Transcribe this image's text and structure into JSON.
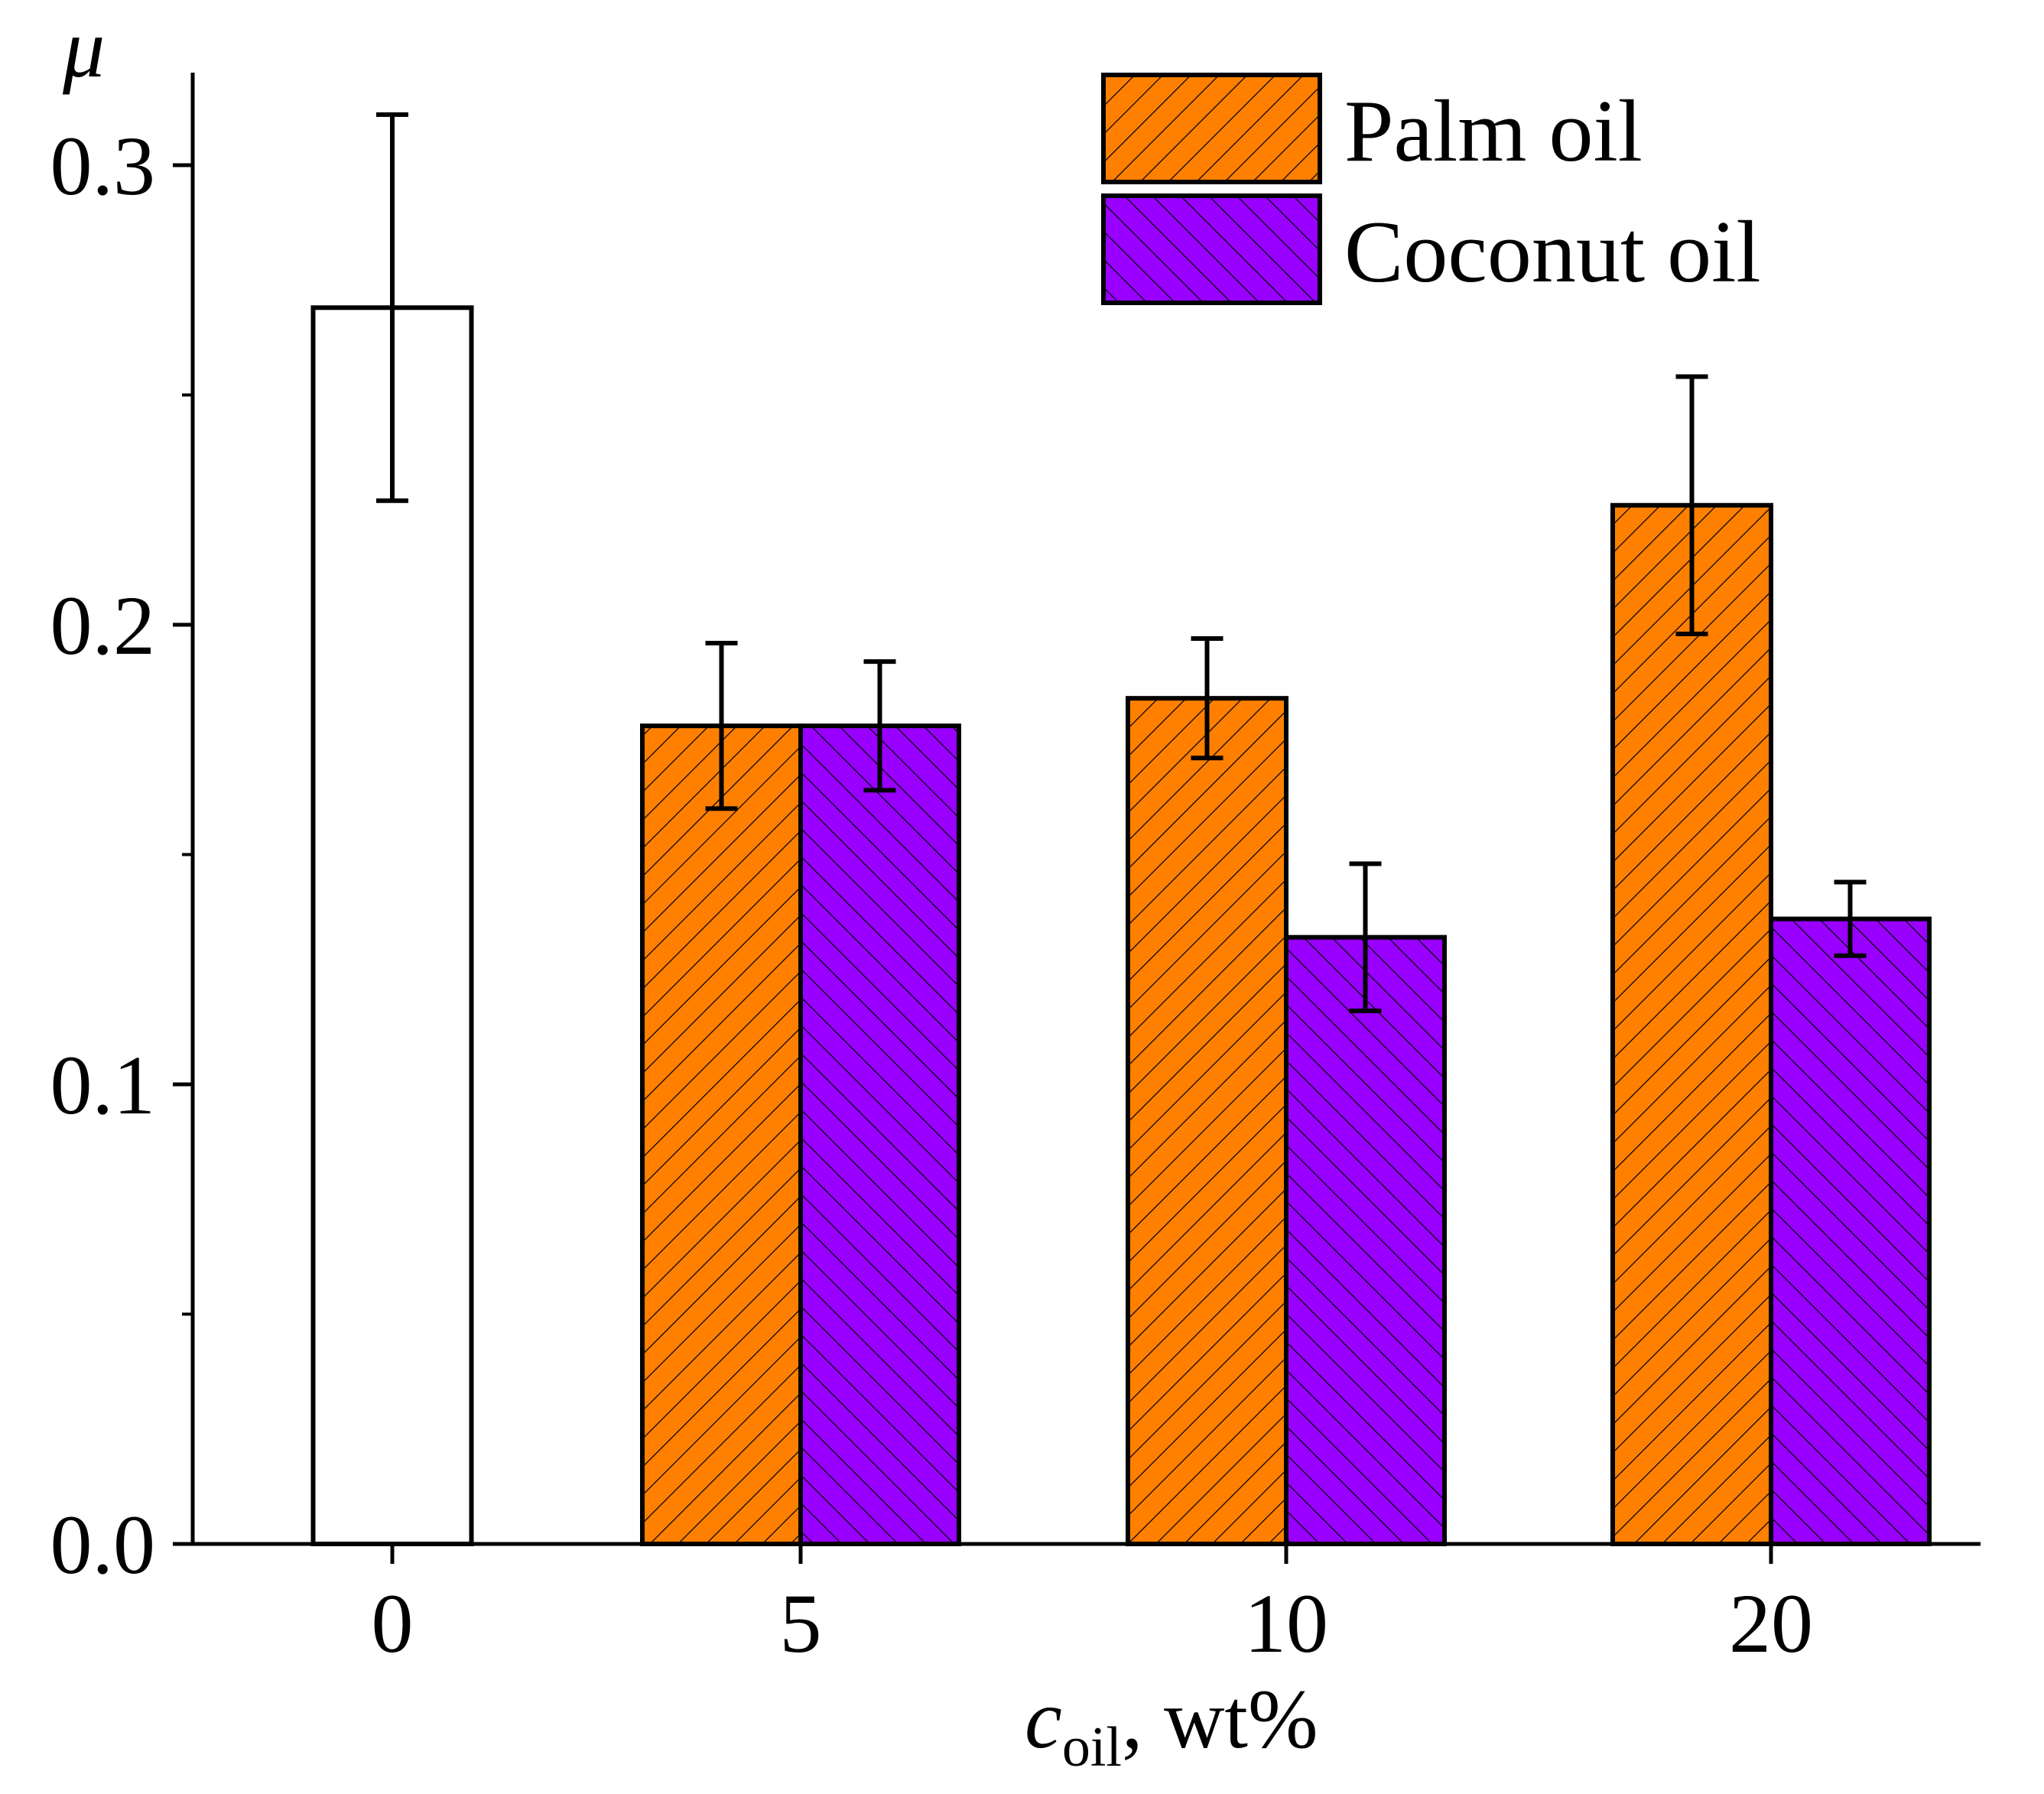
{
  "chart_data": {
    "type": "bar",
    "title": "",
    "xlabel": {
      "symbol": "c",
      "subscript": "oil",
      "unit": ", wt%"
    },
    "ylabel": "μ",
    "ylim": [
      0,
      0.32
    ],
    "yticks": [
      {
        "value": 0.0,
        "label": "0.0"
      },
      {
        "value": 0.1,
        "label": "0.1"
      },
      {
        "value": 0.2,
        "label": "0.2"
      },
      {
        "value": 0.3,
        "label": "0.3"
      }
    ],
    "yminor_ticks": [
      0.05,
      0.15,
      0.25
    ],
    "categories": [
      "0",
      "5",
      "10",
      "20"
    ],
    "series": [
      {
        "name": "Palm oil",
        "color": "#ff8000",
        "hatch": "forward-diagonal",
        "values": [
          null,
          0.178,
          0.184,
          0.226
        ],
        "errors": [
          null,
          0.018,
          0.013,
          0.028
        ]
      },
      {
        "name": "Coconut oil",
        "color": "#9900ff",
        "hatch": "backward-diagonal",
        "values": [
          null,
          0.178,
          0.132,
          0.136
        ],
        "errors": [
          null,
          0.014,
          0.016,
          0.008
        ]
      }
    ],
    "baseline": {
      "category": "0",
      "value": 0.269,
      "error": 0.042,
      "color": "#ffffff"
    },
    "legend": {
      "position": "top-right",
      "entries": [
        "Palm oil",
        "Coconut oil"
      ]
    },
    "grid": false
  }
}
